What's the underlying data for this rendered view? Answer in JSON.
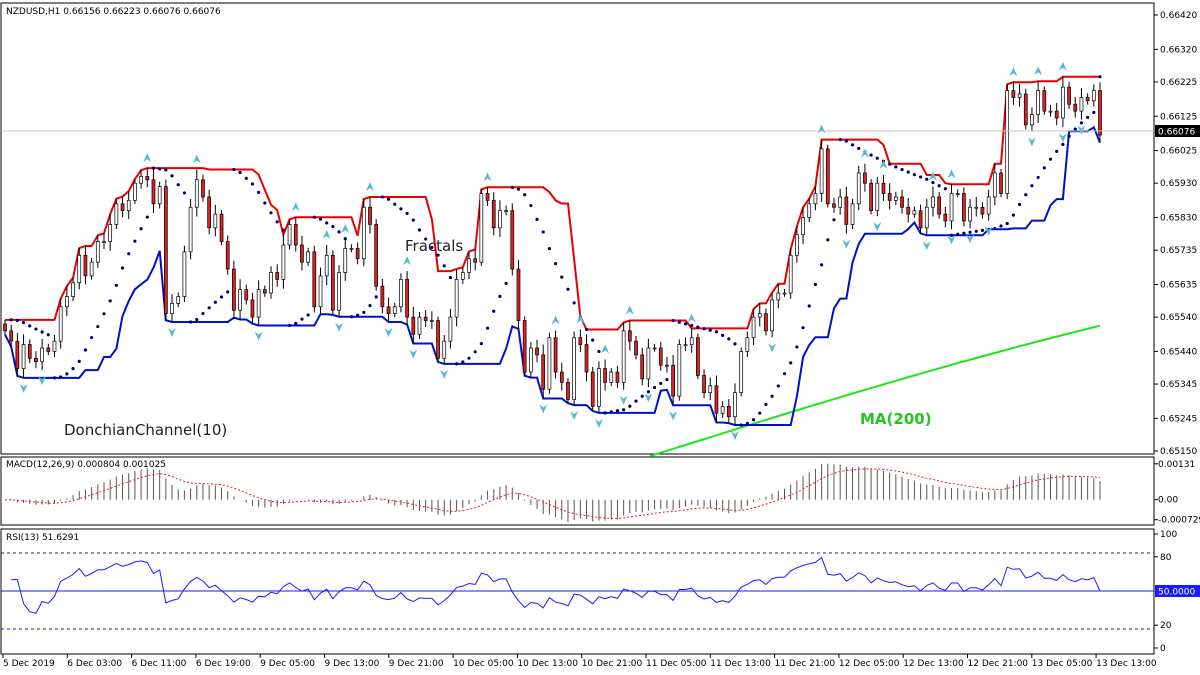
{
  "symbol_header": "NZDUSD,H1  0.66156 0.66223 0.66076 0.66076",
  "price_panel": {
    "ymin": 0.6515,
    "ymax": 0.6642,
    "current_price": "0.66076",
    "tick_labels": [
      "0.66420",
      "0.66320",
      "0.66225",
      "0.66125",
      "0.66025",
      "0.65930",
      "0.65830",
      "0.65735",
      "0.65635",
      "0.65540",
      "0.65440",
      "0.65345",
      "0.65245",
      "0.65150"
    ],
    "annotations": {
      "fractals": "Fractals",
      "donchian": "DonchianChannel(10)",
      "ma": "MA(200)"
    }
  },
  "macd_panel": {
    "header": "MACD(12,26,9) 0.000804 0.001025",
    "ymin": -0.00085,
    "ymax": 0.00145,
    "tick_labels": [
      "0.00131",
      "0.00",
      "-0.000729"
    ]
  },
  "rsi_panel": {
    "header": "RSI(13) 51.6291",
    "current_value": "50.0000",
    "tick_labels": [
      "100",
      "80",
      "20",
      "0"
    ]
  },
  "time_labels": [
    "5 Dec 2019",
    "6 Dec 03:00",
    "6 Dec 11:00",
    "6 Dec 19:00",
    "9 Dec 05:00",
    "9 Dec 13:00",
    "9 Dec 21:00",
    "10 Dec 05:00",
    "10 Dec 13:00",
    "10 Dec 21:00",
    "11 Dec 05:00",
    "11 Dec 13:00",
    "11 Dec 21:00",
    "12 Dec 05:00",
    "12 Dec 13:00",
    "12 Dec 21:00",
    "13 Dec 05:00",
    "13 Dec 13:00"
  ],
  "colors": {
    "bull": "#ffffff",
    "bear": "#dd2020",
    "donchian_upper": "#e60000",
    "donchian_lower": "#0010c8",
    "sar": "#00006e",
    "ma": "#1ee61e",
    "fractal": "#58b8d0",
    "macd_signal": "#dd2020",
    "rsi": "#1a1aff"
  },
  "chart_data": {
    "type": "candlestick",
    "instrument": "NZDUSD",
    "timeframe": "H1",
    "closes": [
      0.655,
      0.6547,
      0.6539,
      0.6546,
      0.6542,
      0.6541,
      0.6545,
      0.6544,
      0.6547,
      0.6557,
      0.656,
      0.6564,
      0.6572,
      0.6566,
      0.657,
      0.6576,
      0.6576,
      0.6581,
      0.6587,
      0.6585,
      0.6588,
      0.6593,
      0.6595,
      0.6594,
      0.6587,
      0.6592,
      0.6555,
      0.6558,
      0.656,
      0.6573,
      0.6586,
      0.6594,
      0.6589,
      0.658,
      0.6584,
      0.6576,
      0.6568,
      0.6556,
      0.6562,
      0.6559,
      0.6554,
      0.6562,
      0.6561,
      0.6567,
      0.6565,
      0.6575,
      0.6581,
      0.6575,
      0.657,
      0.6573,
      0.6557,
      0.6566,
      0.6572,
      0.6556,
      0.6567,
      0.6574,
      0.6574,
      0.6571,
      0.6586,
      0.6581,
      0.6563,
      0.6557,
      0.6555,
      0.6557,
      0.6565,
      0.6554,
      0.6549,
      0.6554,
      0.6553,
      0.6553,
      0.6542,
      0.6547,
      0.6554,
      0.6565,
      0.6567,
      0.6571,
      0.657,
      0.659,
      0.6588,
      0.658,
      0.6585,
      0.6585,
      0.6568,
      0.6553,
      0.6538,
      0.6545,
      0.6543,
      0.6533,
      0.6548,
      0.6538,
      0.6535,
      0.653,
      0.6548,
      0.6546,
      0.6538,
      0.6528,
      0.6539,
      0.6535,
      0.6538,
      0.6535,
      0.655,
      0.6547,
      0.6543,
      0.6536,
      0.6545,
      0.6545,
      0.654,
      0.654,
      0.6531,
      0.6546,
      0.6546,
      0.6548,
      0.6537,
      0.6532,
      0.6534,
      0.6526,
      0.6528,
      0.6525,
      0.6532,
      0.6544,
      0.6548,
      0.6554,
      0.6555,
      0.655,
      0.6559,
      0.6561,
      0.6561,
      0.6572,
      0.6578,
      0.6583,
      0.6587,
      0.659,
      0.6603,
      0.6587,
      0.6586,
      0.6589,
      0.6581,
      0.6587,
      0.6596,
      0.6593,
      0.6585,
      0.6593,
      0.659,
      0.6588,
      0.6589,
      0.6586,
      0.6584,
      0.6585,
      0.658,
      0.6586,
      0.6589,
      0.6584,
      0.6582,
      0.659,
      0.659,
      0.6582,
      0.6586,
      0.6586,
      0.6584,
      0.6589,
      0.6596,
      0.659,
      0.662,
      0.6618,
      0.6619,
      0.661,
      0.6613,
      0.662,
      0.6614,
      0.6614,
      0.6612,
      0.6621,
      0.6616,
      0.6614,
      0.6618,
      0.6617,
      0.662,
      0.6607
    ],
    "ma200_start": 0.65135,
    "ma200_end": 0.65515,
    "macd_histogram": "derived from closes (EMA12-EMA26)",
    "rsi_period": 13
  }
}
